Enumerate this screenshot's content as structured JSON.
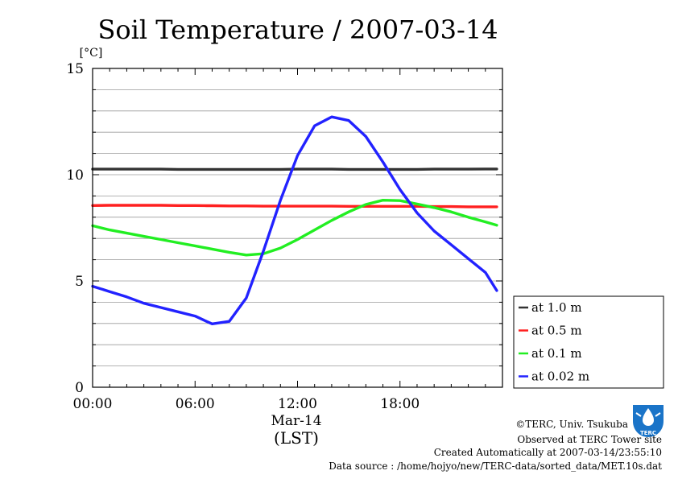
{
  "chart_data": {
    "type": "line",
    "title": "Soil Temperature / 2007-03-14",
    "yunit": "[°C]",
    "xlabel": "Mar-14",
    "xsublabel": "(LST)",
    "ylim": [
      0,
      15
    ],
    "xlim": [
      "00:00",
      "24:00"
    ],
    "xticks": [
      "00:00",
      "06:00",
      "12:00",
      "18:00"
    ],
    "yticks": [
      "0",
      "5",
      "10",
      "15"
    ],
    "grid": true,
    "legend_position": "right",
    "x": [
      "00:00",
      "01:00",
      "02:00",
      "03:00",
      "04:00",
      "05:00",
      "06:00",
      "06:40",
      "07:00",
      "08:00",
      "09:00",
      "10:00",
      "11:00",
      "12:00",
      "13:00",
      "14:00",
      "15:00",
      "16:00",
      "17:00",
      "18:00",
      "19:00",
      "20:00",
      "21:00",
      "22:00",
      "23:00",
      "23:40"
    ],
    "series": [
      {
        "name": "at 1.0 m",
        "color": "#333333",
        "values": [
          10.26,
          10.26,
          10.26,
          10.26,
          10.26,
          10.25,
          10.25,
          10.25,
          10.25,
          10.25,
          10.25,
          10.25,
          10.25,
          10.26,
          10.26,
          10.26,
          10.25,
          10.25,
          10.25,
          10.25,
          10.25,
          10.26,
          10.26,
          10.26,
          10.27,
          10.27
        ]
      },
      {
        "name": "at 0.5 m",
        "color": "#ff2020",
        "values": [
          8.55,
          8.56,
          8.56,
          8.56,
          8.56,
          8.55,
          8.55,
          8.54,
          8.54,
          8.53,
          8.53,
          8.52,
          8.52,
          8.52,
          8.52,
          8.52,
          8.51,
          8.51,
          8.51,
          8.51,
          8.51,
          8.5,
          8.5,
          8.49,
          8.49,
          8.49
        ]
      },
      {
        "name": "at 0.1 m",
        "color": "#22ee22",
        "values": [
          7.6,
          7.4,
          7.25,
          7.1,
          6.95,
          6.8,
          6.65,
          6.55,
          6.5,
          6.35,
          6.22,
          6.28,
          6.55,
          6.95,
          7.4,
          7.85,
          8.25,
          8.6,
          8.8,
          8.78,
          8.62,
          8.45,
          8.25,
          8.0,
          7.78,
          7.62
        ]
      },
      {
        "name": "at 0.02 m",
        "color": "#2222ff",
        "values": [
          4.75,
          4.5,
          4.25,
          3.95,
          3.75,
          3.55,
          3.35,
          3.1,
          2.98,
          3.1,
          4.2,
          6.4,
          8.8,
          10.9,
          12.3,
          12.72,
          12.55,
          11.8,
          10.6,
          9.3,
          8.2,
          7.35,
          6.7,
          6.05,
          5.4,
          4.55
        ]
      }
    ]
  },
  "credits": {
    "copyright": "©TERC, Univ. Tsukuba",
    "site": "Observed at TERC Tower site",
    "created": "Created Automatically at 2007-03-14/23:55:10",
    "source": "Data source : /home/hojyo/new/TERC-data/sorted_data/MET.10s.dat",
    "logo_text": "TERC"
  }
}
